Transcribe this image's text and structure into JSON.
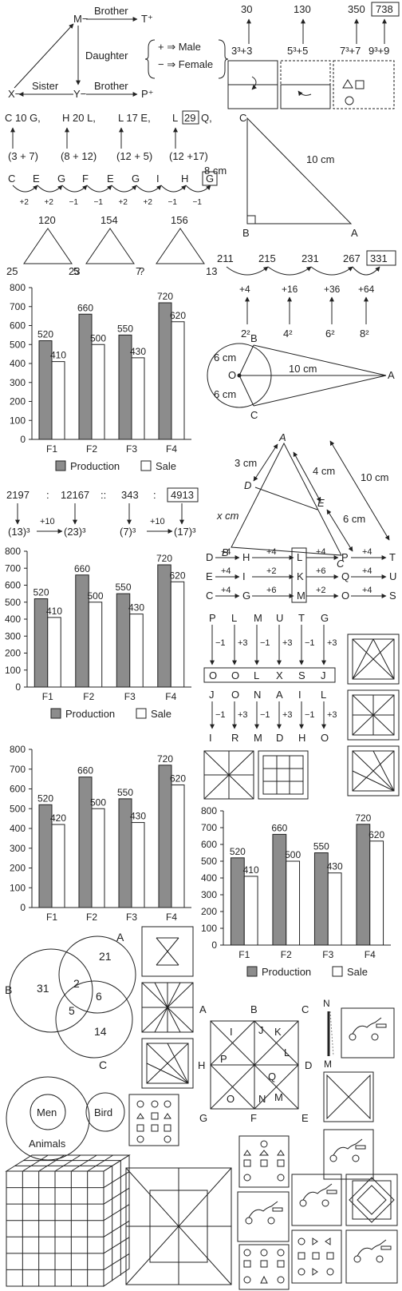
{
  "family": {
    "m": "M−",
    "t": "T⁺",
    "x": "X−",
    "y": "Y−",
    "p": "P⁺",
    "brother_top": "Brother",
    "daughter": "Daughter",
    "sister": "Sister",
    "brother_bottom": "Brother",
    "key_male": "+ ⇒ Male",
    "key_female": "− ⇒ Female"
  },
  "cube_series": {
    "values": [
      "30",
      "130",
      "350",
      "738"
    ],
    "formulas": [
      "3³+3",
      "5³+5",
      "7³+7",
      "9³+9"
    ]
  },
  "letter_number": {
    "top": [
      "C 10 G,",
      "H 20 L,",
      "L 17 E,",
      "L",
      "29",
      "Q,"
    ],
    "sums": [
      "(3 + 7)",
      "(8 + 12)",
      "(12 + 5)",
      "(12 +17)"
    ]
  },
  "letter_series": {
    "letters": [
      "C",
      "E",
      "G",
      "F",
      "E",
      "G",
      "I",
      "H",
      "G"
    ],
    "diffs": [
      "+2",
      "+2",
      "−1",
      "−1",
      "+2",
      "+2",
      "−1",
      "−1"
    ]
  },
  "right_triangle": {
    "c": "C",
    "b": "B",
    "a": "A",
    "side": "8 cm",
    "hyp": "10 cm"
  },
  "number_triangles": [
    {
      "top": "120",
      "left": "25",
      "right": "5"
    },
    {
      "top": "154",
      "left": "23",
      "right": "7"
    },
    {
      "top": "156",
      "left": "?",
      "right": "13"
    }
  ],
  "square_series": {
    "values": [
      "211",
      "215",
      "231",
      "267",
      "331"
    ],
    "diffs": [
      "+4",
      "+16",
      "+36",
      "+64"
    ],
    "squares": [
      "2²",
      "4²",
      "6²",
      "8²"
    ]
  },
  "tangents": {
    "b": "B",
    "o": "O",
    "c": "C",
    "a": "A",
    "r1": "6 cm",
    "r2": "6 cm",
    "oa": "10 cm"
  },
  "similar_triangles": {
    "a": "A",
    "d": "D",
    "e": "E",
    "b": "B",
    "c": "C",
    "ad": "3 cm",
    "ae": "4 cm",
    "ac": "10 cm",
    "ec": "6 cm",
    "db": "x cm"
  },
  "cube_ratio": {
    "nums": [
      "2197",
      ":",
      "12167",
      "::",
      "343",
      ":",
      "4913"
    ],
    "roots": [
      "(13)³",
      "+10",
      "(23)³",
      "(7)³",
      "+10",
      "(17)³"
    ]
  },
  "coding": {
    "rows": [
      [
        "D",
        "+4",
        "H",
        "+4",
        "L",
        "+4",
        "P",
        "+4",
        "T"
      ],
      [
        "E",
        "+4",
        "I",
        "+2",
        "K",
        "+6",
        "Q",
        "+4",
        "U"
      ],
      [
        "C",
        "+4",
        "G",
        "+6",
        "M",
        "+2",
        "O",
        "+4",
        "S"
      ]
    ],
    "word1": [
      "P",
      "L",
      "M",
      "U",
      "T",
      "G"
    ],
    "ops": [
      "−1",
      "+3",
      "−1",
      "+3",
      "−1",
      "+3"
    ],
    "code1": [
      "O",
      "O",
      "L",
      "X",
      "S",
      "J"
    ],
    "word2": [
      "J",
      "O",
      "N",
      "A",
      "I",
      "L"
    ],
    "code2": [
      "I",
      "R",
      "M",
      "D",
      "H",
      "O"
    ]
  },
  "chart_data": [
    {
      "type": "bar",
      "categories": [
        "F1",
        "F2",
        "F3",
        "F4"
      ],
      "series": [
        {
          "name": "Production",
          "values": [
            520,
            660,
            550,
            720
          ]
        },
        {
          "name": "Sale",
          "values": [
            410,
            500,
            430,
            620
          ]
        }
      ],
      "yticks": [
        "0",
        "100",
        "200",
        "300",
        "400",
        "500",
        "600",
        "700",
        "800"
      ],
      "ylim": [
        0,
        800
      ],
      "legend": "bottom",
      "colors": {
        "Production": "#8c8c8c",
        "Sale": "#ffffff"
      }
    },
    {
      "type": "bar",
      "categories": [
        "F1",
        "F2",
        "F3",
        "F4"
      ],
      "series": [
        {
          "name": "Production",
          "values": [
            520,
            660,
            550,
            720
          ]
        },
        {
          "name": "Sale",
          "values": [
            410,
            500,
            430,
            620
          ]
        }
      ],
      "yticks": [
        "0",
        "100",
        "200",
        "300",
        "400",
        "500",
        "600",
        "700",
        "800"
      ],
      "ylim": [
        0,
        800
      ],
      "legend": "bottom",
      "colors": {
        "Production": "#8c8c8c",
        "Sale": "#ffffff"
      }
    },
    {
      "type": "bar",
      "categories": [
        "F1",
        "F2",
        "F3",
        "F4"
      ],
      "series": [
        {
          "name": "Production",
          "values": [
            520,
            660,
            550,
            720
          ]
        },
        {
          "name": "Sale",
          "values": [
            420,
            500,
            430,
            620
          ]
        }
      ],
      "yticks": [
        "0",
        "100",
        "200",
        "300",
        "400",
        "500",
        "600",
        "700",
        "800"
      ],
      "ylim": [
        0,
        800
      ],
      "legend": "none",
      "colors": {
        "Production": "#8c8c8c",
        "Sale": "#ffffff"
      }
    },
    {
      "type": "bar",
      "categories": [
        "F1",
        "F2",
        "F3",
        "F4"
      ],
      "series": [
        {
          "name": "Production",
          "values": [
            520,
            660,
            550,
            720
          ]
        },
        {
          "name": "Sale",
          "values": [
            410,
            500,
            430,
            620
          ]
        }
      ],
      "yticks": [
        "0",
        "100",
        "200",
        "300",
        "400",
        "500",
        "600",
        "700",
        "800"
      ],
      "ylim": [
        0,
        800
      ],
      "legend": "bottom",
      "colors": {
        "Production": "#8c8c8c",
        "Sale": "#ffffff"
      }
    }
  ],
  "venn": {
    "a": "A",
    "b": "B",
    "c": "C",
    "v21": "21",
    "v31": "31",
    "v2": "2",
    "v6": "6",
    "v5": "5",
    "v14": "14"
  },
  "animals": {
    "men": "Men",
    "bird": "Bird",
    "animals": "Animals"
  },
  "square_fig": {
    "labels": [
      "A",
      "B",
      "C",
      "D",
      "E",
      "F",
      "G",
      "H",
      "I",
      "J",
      "K",
      "L",
      "M",
      "N",
      "O",
      "P",
      "Q"
    ],
    "mirror_n": "N",
    "mirror_m": "M"
  }
}
